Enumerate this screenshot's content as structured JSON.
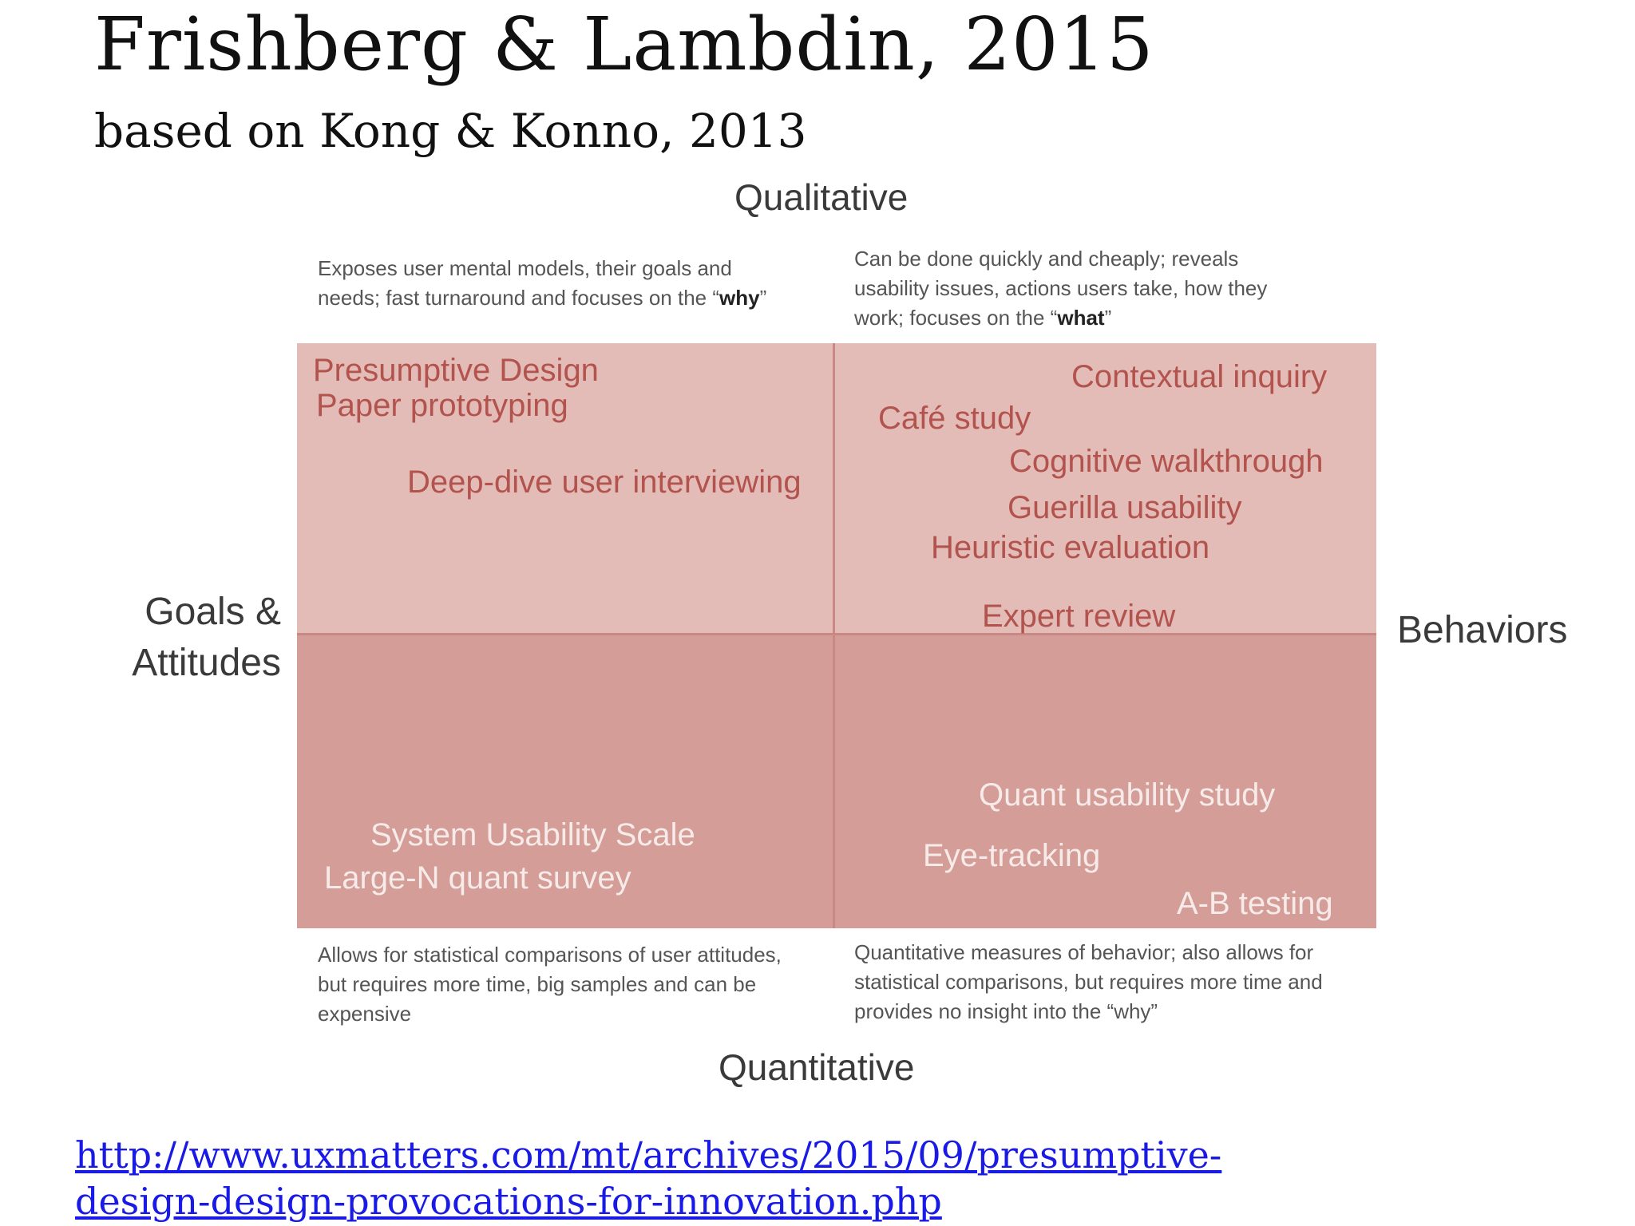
{
  "slide": {
    "title": "Frishberg & Lambdin, 2015",
    "subtitle": "based on Kong & Konno, 2013",
    "link": "http://www.uxmatters.com/mt/archives/2015/09/presumptive-design-design-provocations-for-innovation.php"
  },
  "diagram": {
    "axes": {
      "top": "Qualitative",
      "bottom": "Quantitative",
      "left": "Goals & Attitudes",
      "right": "Behaviors"
    },
    "descriptions": {
      "top_left": {
        "text": "Exposes user mental models, their goals and needs; fast turnaround and focuses on the “",
        "emphasis": "why",
        "end": "”"
      },
      "top_right": {
        "text": "Can be done quickly and cheaply; reveals usability issues, actions users take, how they work; focuses on the “",
        "emphasis": "what",
        "end": "”"
      },
      "bottom_left": "Allows for statistical comparisons of user attitudes, but requires more time, big samples and can be expensive",
      "bottom_right": "Quantitative measures of behavior; also allows for statistical comparisons, but requires more time and provides no insight into the “why”"
    },
    "methods": {
      "top_left": [
        "Presumptive Design",
        "Paper prototyping",
        "Deep-dive user interviewing"
      ],
      "top_right": [
        "Contextual inquiry",
        "Café study",
        "Cognitive walkthrough",
        "Guerilla usability",
        "Heuristic evaluation",
        "Expert review"
      ],
      "bottom_left": [
        "System Usability Scale",
        "Large-N quant survey"
      ],
      "bottom_right": [
        "Quant usability study",
        "Eye-tracking",
        "A-B testing"
      ]
    },
    "colors": {
      "top_quadrants": "#e3bbb7",
      "bottom_quadrants": "#d49d97",
      "top_method_text": "#b3534e",
      "bottom_method_text": "#f7ebea",
      "link": "#1a1ae6"
    }
  }
}
